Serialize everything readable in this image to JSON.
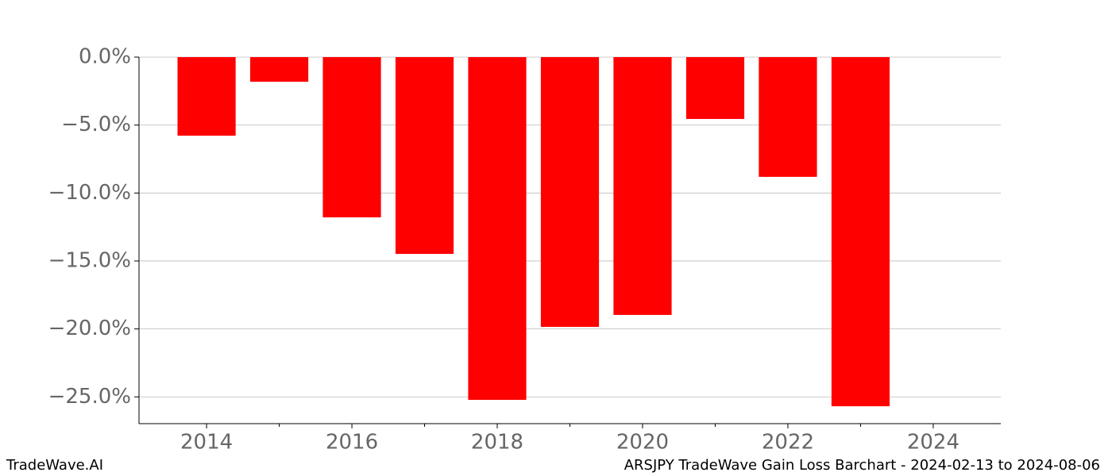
{
  "chart_data": {
    "type": "bar",
    "title": "ARSJPY TradeWave Gain Loss Barchart - 2024-02-13 to 2024-08-06",
    "watermark": "TradeWave.AI",
    "x": [
      2014,
      2015,
      2016,
      2017,
      2018,
      2019,
      2020,
      2021,
      2022,
      2023
    ],
    "values": [
      -5.78,
      -1.81,
      -11.79,
      -14.48,
      -25.22,
      -19.85,
      -18.97,
      -4.55,
      -8.81,
      -25.69
    ],
    "color": "#ff0000",
    "xlim": [
      2013.07,
      2024.93
    ],
    "xticks": [
      2014,
      2016,
      2018,
      2020,
      2022,
      2024
    ],
    "xminorticks": [
      2015,
      2017,
      2019,
      2021,
      2023
    ],
    "ylim": [
      -26.97,
      0
    ],
    "yticks": [
      {
        "value": 0,
        "label": "0.0%"
      },
      {
        "value": -5,
        "label": "−5.0%"
      },
      {
        "value": -10,
        "label": "−10.0%"
      },
      {
        "value": -15,
        "label": "−15.0%"
      },
      {
        "value": -20,
        "label": "−20.0%"
      },
      {
        "value": -25,
        "label": "−25.0%"
      }
    ],
    "grid": true
  }
}
